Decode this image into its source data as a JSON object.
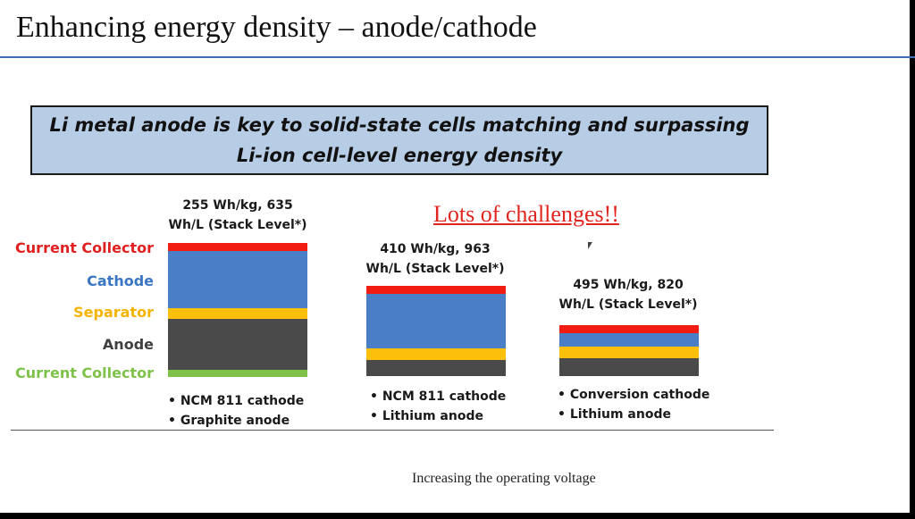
{
  "title": "Enhancing energy density – anode/cathode",
  "headline": {
    "line1": "Li metal anode is key to solid-state cells matching and surpassing",
    "line2": "Li-ion cell-level energy density"
  },
  "callout": "Lots of challenges!!",
  "layer_labels": [
    {
      "text": "Current Collector",
      "color": "#e02020"
    },
    {
      "text": "Cathode",
      "color": "#3a76c4"
    },
    {
      "text": "Separator",
      "color": "#f5b400"
    },
    {
      "text": "Anode",
      "color": "#3f3f3f"
    },
    {
      "text": "Current Collector",
      "color": "#7fc24a"
    }
  ],
  "layer_colors": {
    "current_collector_top": "#f11d12",
    "cathode": "#4a7ec6",
    "separator": "#fbbf0c",
    "anode": "#4a4a4a",
    "current_collector_bottom": "#7fc24a"
  },
  "stacks": [
    {
      "caption_line1": "255 Wh/kg, 635",
      "caption_line2": "Wh/L (Stack Level*)",
      "bullets": [
        "NCM 811 cathode",
        "Graphite anode"
      ]
    },
    {
      "caption_line1": "410 Wh/kg, 963",
      "caption_line2": "Wh/L (Stack Level*)",
      "bullets": [
        "NCM 811 cathode",
        "Lithium anode"
      ]
    },
    {
      "caption_line1": "495 Wh/kg, 820",
      "caption_line2": "Wh/L (Stack Level*)",
      "bullets": [
        "Conversion cathode",
        "Lithium anode"
      ]
    }
  ],
  "footer_caption": "Increasing the operating voltage"
}
